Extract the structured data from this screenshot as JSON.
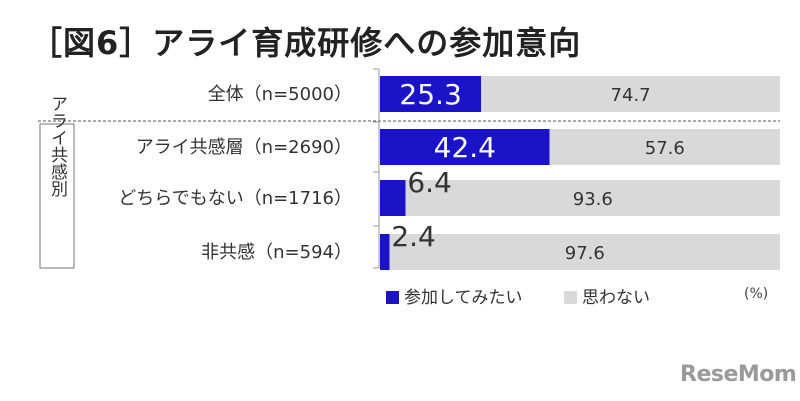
{
  "title": "［図6］アライ育成研修への参加意向",
  "unit_note": "(%)",
  "group_label": "アライ共感別",
  "watermark": "ReseMom",
  "colors": {
    "participate": "#1a13c8",
    "not": "#d9d9d9"
  },
  "chart_data": {
    "type": "bar",
    "stacked": true,
    "orientation": "horizontal",
    "categories": [
      "全体（n=5000）",
      "アライ共感層（n=2690）",
      "どちらでもない（n=1716）",
      "非共感（n=594）"
    ],
    "series": [
      {
        "name": "参加してみたい",
        "values": [
          25.3,
          42.4,
          6.4,
          2.4
        ]
      },
      {
        "name": "思わない",
        "values": [
          74.7,
          57.6,
          93.6,
          97.6
        ]
      }
    ],
    "xlim": [
      0,
      100
    ],
    "legend": "bottom",
    "grid": false
  }
}
